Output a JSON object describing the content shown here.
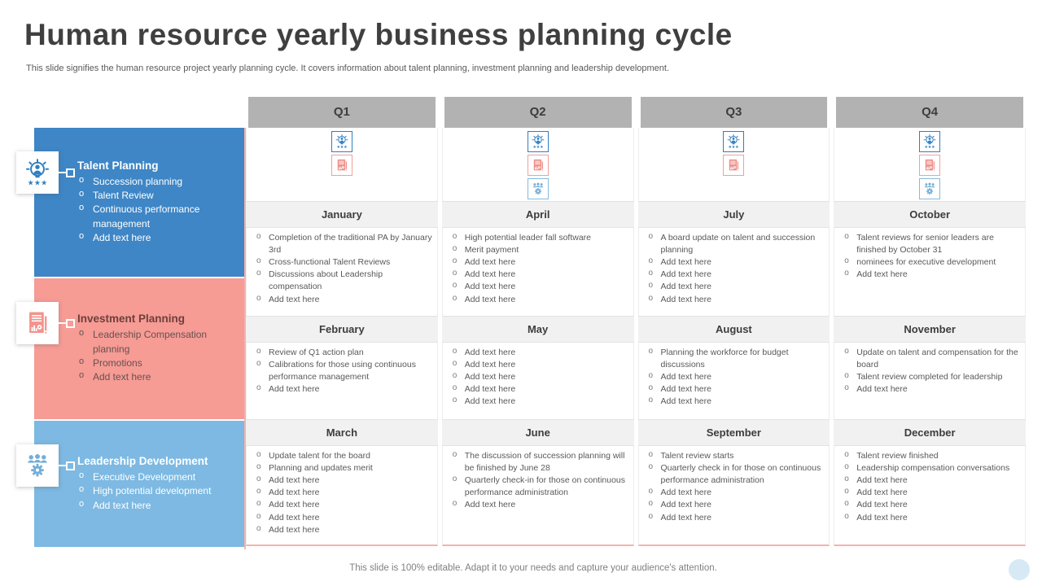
{
  "slide": {
    "title": "Human resource yearly business planning cycle",
    "subtitle": "This slide signifies the human resource project yearly planning cycle. It covers information about talent planning, investment planning and leadership development.",
    "footer": "This slide is 100% editable. Adapt it to your needs and capture your audience's attention."
  },
  "colors": {
    "talent_blue": "#3e86c6",
    "investment_salmon": "#f79b95",
    "leadership_light_blue": "#7db9e2",
    "quarter_header_bg": "#b2b2b2",
    "month_header_bg": "#f1f1f1",
    "title_text": "#3f3f3f",
    "body_text": "#595959",
    "accent_line": "#f3b3ae"
  },
  "categories": [
    {
      "title": "Talent Planning",
      "icon": "talent-idea-icon",
      "items": [
        "Succession planning",
        "Talent Review",
        "Continuous performance management",
        "Add text here"
      ]
    },
    {
      "title": "Investment Planning",
      "icon": "investment-report-icon",
      "items": [
        "Leadership Compensation planning",
        "Promotions",
        "Add text here"
      ]
    },
    {
      "title": "Leadership Development",
      "icon": "leadership-team-icon",
      "items": [
        "Executive Development",
        "High potential development",
        "Add text here"
      ]
    }
  ],
  "quarters": [
    {
      "label": "Q1",
      "icons": [
        "talent",
        "investment"
      ],
      "months": [
        {
          "name": "January",
          "items": [
            "Completion of the traditional PA by January 3rd",
            "Cross-functional Talent Reviews",
            "Discussions about Leadership compensation",
            "Add text here"
          ]
        },
        {
          "name": "February",
          "items": [
            "Review of Q1 action plan",
            "Calibrations for those using continuous performance management",
            "Add text here"
          ]
        },
        {
          "name": "March",
          "items": [
            "Update talent for the board",
            "Planning and updates merit",
            "Add text here",
            "Add text here",
            "Add text here",
            "Add text here",
            "Add text here"
          ]
        }
      ]
    },
    {
      "label": "Q2",
      "icons": [
        "talent",
        "investment",
        "leadership"
      ],
      "months": [
        {
          "name": "April",
          "items": [
            "High potential leader fall software",
            "Merit payment",
            "Add text here",
            "Add text here",
            "Add text here",
            "Add text here"
          ]
        },
        {
          "name": "May",
          "items": [
            "Add text here",
            "Add text here",
            "Add text here",
            "Add text here",
            "Add text here"
          ]
        },
        {
          "name": "June",
          "items": [
            "The discussion of succession planning will be finished by June 28",
            "Quarterly check-in for those on continuous performance administration",
            "Add text here"
          ]
        }
      ]
    },
    {
      "label": "Q3",
      "icons": [
        "talent",
        "investment"
      ],
      "months": [
        {
          "name": "July",
          "items": [
            "A board update on talent and succession planning",
            "Add text here",
            "Add text here",
            "Add text here",
            "Add text here"
          ]
        },
        {
          "name": "August",
          "items": [
            "Planning the workforce for budget discussions",
            "Add text here",
            "Add text here",
            "Add text here"
          ]
        },
        {
          "name": "September",
          "items": [
            "Talent review starts",
            "Quarterly check in for those on continuous performance administration",
            "Add text here",
            "Add text here",
            "Add text here"
          ]
        }
      ]
    },
    {
      "label": "Q4",
      "icons": [
        "talent",
        "investment",
        "leadership"
      ],
      "months": [
        {
          "name": "October",
          "items": [
            "Talent reviews for senior leaders are finished by October 31",
            "nominees for executive development",
            "Add text here"
          ]
        },
        {
          "name": "November",
          "items": [
            "Update on talent and compensation for the board",
            "Talent review  completed for leadership",
            "Add text here"
          ]
        },
        {
          "name": "December",
          "items": [
            "Talent review finished",
            "Leadership compensation conversations",
            "Add text here",
            "Add text here",
            "Add text here",
            "Add text here"
          ]
        }
      ]
    }
  ]
}
